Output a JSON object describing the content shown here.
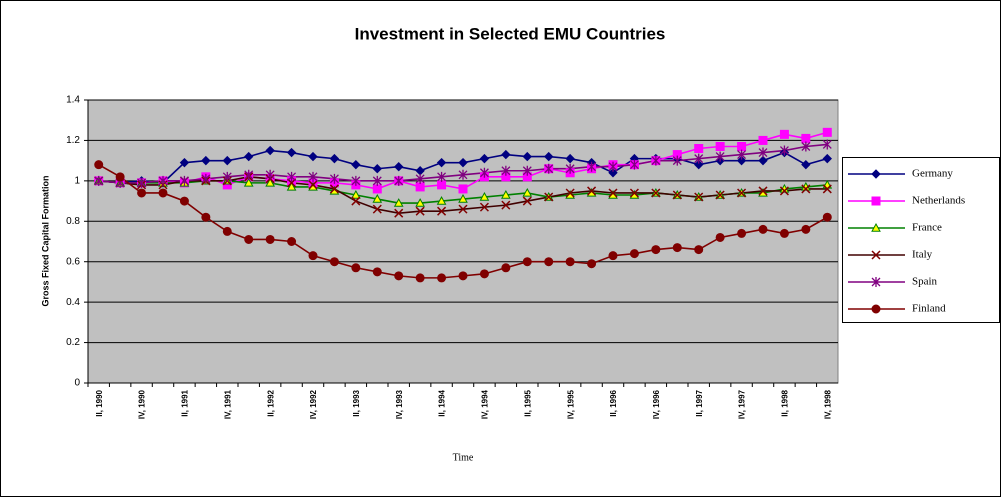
{
  "chart_data": {
    "type": "line",
    "title": "Investment in Selected EMU Countries",
    "x_label": "Time",
    "y_label": "Gross Fixed Capital Formation",
    "categories": [
      "II, 1990",
      null,
      "IV, 1990",
      null,
      "II, 1991",
      null,
      "IV, 1991",
      null,
      "II, 1992",
      null,
      "IV, 1992",
      null,
      "II, 1993",
      null,
      "IV, 1993",
      null,
      "II, 1994",
      null,
      "IV, 1994",
      null,
      "II, 1995",
      null,
      "IV, 1995",
      null,
      "II, 1996",
      null,
      "IV, 1996",
      null,
      "II, 1997",
      null,
      "IV, 1997",
      null,
      "II, 1998",
      null,
      "IV, 1998"
    ],
    "ylim": [
      0,
      1.4
    ],
    "yticks": [
      0,
      0.2,
      0.4,
      0.6,
      0.8,
      1,
      1.2,
      1.4
    ],
    "grid": true,
    "legend": "right",
    "plot_background": "#c0c0c0",
    "series": [
      {
        "name": "Germany",
        "color": "#000080",
        "marker": "diamond",
        "marker_fill": "#000080",
        "values": [
          1.0,
          0.99,
          1.0,
          0.99,
          1.09,
          1.1,
          1.1,
          1.12,
          1.15,
          1.14,
          1.12,
          1.11,
          1.08,
          1.06,
          1.07,
          1.05,
          1.09,
          1.09,
          1.11,
          1.13,
          1.12,
          1.12,
          1.11,
          1.09,
          1.04,
          1.11,
          1.11,
          1.11,
          1.08,
          1.1,
          1.1,
          1.1,
          1.14,
          1.08,
          1.11
        ]
      },
      {
        "name": "Netherlands",
        "color": "#ff00ff",
        "marker": "square",
        "marker_fill": "#ff00ff",
        "values": [
          1.0,
          0.99,
          0.99,
          1.0,
          0.99,
          1.02,
          0.98,
          1.02,
          1.01,
          1.0,
          0.99,
          0.99,
          0.98,
          0.96,
          1.0,
          0.97,
          0.98,
          0.96,
          1.02,
          1.02,
          1.02,
          1.06,
          1.04,
          1.06,
          1.08,
          1.08,
          1.1,
          1.13,
          1.16,
          1.17,
          1.17,
          1.2,
          1.23,
          1.21,
          1.24
        ]
      },
      {
        "name": "France",
        "color": "#008000",
        "marker": "triangle",
        "marker_fill": "#ffff00",
        "values": [
          1.0,
          0.99,
          0.99,
          0.99,
          0.99,
          1.0,
          1.0,
          0.99,
          0.99,
          0.97,
          0.97,
          0.95,
          0.93,
          0.91,
          0.89,
          0.89,
          0.9,
          0.91,
          0.92,
          0.93,
          0.94,
          0.92,
          0.93,
          0.94,
          0.93,
          0.93,
          0.94,
          0.93,
          0.92,
          0.93,
          0.94,
          0.94,
          0.96,
          0.97,
          0.98
        ]
      },
      {
        "name": "Italy",
        "color": "#400000",
        "marker": "x",
        "marker_fill": "#800000",
        "values": [
          1.0,
          0.99,
          0.98,
          0.98,
          1.0,
          1.0,
          1.0,
          1.02,
          1.01,
          0.99,
          0.98,
          0.96,
          0.9,
          0.86,
          0.84,
          0.85,
          0.85,
          0.86,
          0.87,
          0.88,
          0.9,
          0.92,
          0.94,
          0.95,
          0.94,
          0.94,
          0.94,
          0.93,
          0.92,
          0.93,
          0.94,
          0.95,
          0.95,
          0.96,
          0.96
        ]
      },
      {
        "name": "Spain",
        "color": "#800080",
        "marker": "star",
        "marker_fill": "#800080",
        "values": [
          1.0,
          0.99,
          0.99,
          1.0,
          1.0,
          1.01,
          1.02,
          1.03,
          1.03,
          1.02,
          1.02,
          1.01,
          1.0,
          1.0,
          1.0,
          1.01,
          1.02,
          1.03,
          1.04,
          1.05,
          1.05,
          1.06,
          1.06,
          1.07,
          1.07,
          1.08,
          1.1,
          1.1,
          1.11,
          1.12,
          1.13,
          1.14,
          1.15,
          1.17,
          1.18
        ]
      },
      {
        "name": "Finland",
        "color": "#800000",
        "marker": "circle",
        "marker_fill": "#800000",
        "values": [
          1.08,
          1.02,
          0.94,
          0.94,
          0.9,
          0.82,
          0.75,
          0.71,
          0.71,
          0.7,
          0.63,
          0.6,
          0.57,
          0.55,
          0.53,
          0.52,
          0.52,
          0.53,
          0.54,
          0.57,
          0.6,
          0.6,
          0.6,
          0.59,
          0.63,
          0.64,
          0.66,
          0.67,
          0.66,
          0.72,
          0.74,
          0.76,
          0.74,
          0.76,
          0.82
        ]
      }
    ]
  }
}
